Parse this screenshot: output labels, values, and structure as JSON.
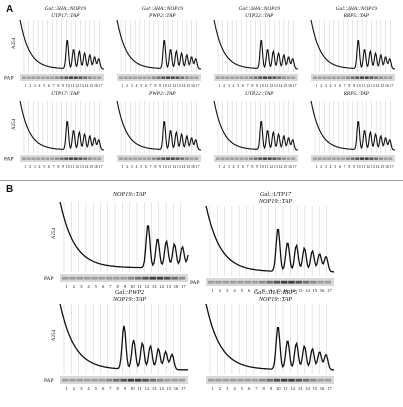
{
  "figure": {
    "sections": [
      {
        "label": "A",
        "panels": [
          {
            "title": [
              "Gal::3HA::NOP19",
              "UTP17::TAP"
            ],
            "ylabel": "A254",
            "blot_label": "PAP",
            "peak_fraction": 10,
            "fractions": [
              "1",
              "2",
              "3",
              "4",
              "5",
              "6",
              "7",
              "8",
              "9",
              "10",
              "11",
              "12",
              "13",
              "14",
              "15",
              "16",
              "17"
            ]
          },
          {
            "title": [
              "Gal::3HA::NOP19",
              "PWP2::TAP"
            ],
            "ylabel": "",
            "blot_label": "",
            "peak_fraction": 10,
            "fractions": [
              "1",
              "2",
              "3",
              "4",
              "5",
              "6",
              "7",
              "8",
              "9",
              "10",
              "11",
              "12",
              "13",
              "14",
              "15",
              "16",
              "17"
            ]
          },
          {
            "title": [
              "Gal::3HA::NOP19",
              "UTP22::TAP"
            ],
            "ylabel": "",
            "blot_label": "",
            "peak_fraction": 10,
            "fractions": [
              "1",
              "2",
              "3",
              "4",
              "5",
              "6",
              "7",
              "8",
              "9",
              "10",
              "11",
              "12",
              "13",
              "14",
              "15",
              "16",
              "17"
            ]
          },
          {
            "title": [
              "Gal::3HA::NOP19",
              "RRP5::TAP"
            ],
            "ylabel": "",
            "blot_label": "",
            "peak_fraction": 10,
            "fractions": [
              "1",
              "2",
              "3",
              "4",
              "5",
              "6",
              "7",
              "8",
              "9",
              "10",
              "11",
              "12",
              "13",
              "14",
              "15",
              "16",
              "17"
            ]
          },
          {
            "title": [
              "UTP17::TAP"
            ],
            "ylabel": "A254",
            "blot_label": "PAP",
            "peak_fraction": 10,
            "fractions": [
              "1",
              "2",
              "3",
              "4",
              "5",
              "6",
              "7",
              "8",
              "9",
              "10",
              "11",
              "12",
              "13",
              "14",
              "15",
              "16",
              "17"
            ]
          },
          {
            "title": [
              "PWP2::TAP"
            ],
            "ylabel": "",
            "blot_label": "",
            "peak_fraction": 10,
            "fractions": [
              "1",
              "2",
              "3",
              "4",
              "5",
              "6",
              "7",
              "8",
              "9",
              "10",
              "11",
              "12",
              "13",
              "14",
              "15",
              "16",
              "17"
            ]
          },
          {
            "title": [
              "UTP22::TAP"
            ],
            "ylabel": "",
            "blot_label": "",
            "peak_fraction": 10,
            "fractions": [
              "1",
              "2",
              "3",
              "4",
              "5",
              "6",
              "7",
              "8",
              "9",
              "10",
              "11",
              "12",
              "13",
              "14",
              "15",
              "16",
              "17"
            ]
          },
          {
            "title": [
              "RRP5::TAP"
            ],
            "ylabel": "",
            "blot_label": "",
            "peak_fraction": 10,
            "fractions": [
              "1",
              "2",
              "3",
              "4",
              "5",
              "6",
              "7",
              "8",
              "9",
              "10",
              "11",
              "12",
              "13",
              "14",
              "15",
              "16",
              "17"
            ]
          }
        ]
      },
      {
        "label": "B",
        "panels": [
          {
            "title": [
              "NOP19::TAP"
            ],
            "ylabel": "A254",
            "blot_label": "PAP",
            "peak_fraction": 12,
            "fractions": [
              "1",
              "2",
              "3",
              "4",
              "5",
              "6",
              "7",
              "8",
              "9",
              "10",
              "11",
              "12",
              "13",
              "14",
              "15",
              "16",
              "17"
            ]
          },
          {
            "title": [
              "Gal::UTP17",
              "NOP19::TAP"
            ],
            "ylabel": "",
            "blot_label": "PAP",
            "peak_fraction": 10,
            "fractions": [
              "1",
              "2",
              "3",
              "4",
              "5",
              "6",
              "7",
              "8",
              "9",
              "10",
              "11",
              "12",
              "13",
              "14",
              "15",
              "16",
              "17"
            ]
          },
          {
            "title": [
              "Gal::PWP2",
              "NOP19::TAP"
            ],
            "ylabel": "A254",
            "blot_label": "PAP",
            "peak_fraction": 9,
            "fractions": [
              "1",
              "2",
              "3",
              "4",
              "5",
              "6",
              "7",
              "8",
              "9",
              "10",
              "11",
              "12",
              "13",
              "14",
              "15",
              "16",
              "17"
            ]
          },
          {
            "title": [
              "Gal::3HA::RRP5",
              "NOP19::TAP"
            ],
            "ylabel": "",
            "blot_label": "",
            "peak_fraction": 10,
            "fractions": [
              "1",
              "2",
              "3",
              "4",
              "5",
              "6",
              "7",
              "8",
              "9",
              "10",
              "11",
              "12",
              "13",
              "14",
              "15",
              "16",
              "17"
            ]
          }
        ]
      }
    ]
  }
}
